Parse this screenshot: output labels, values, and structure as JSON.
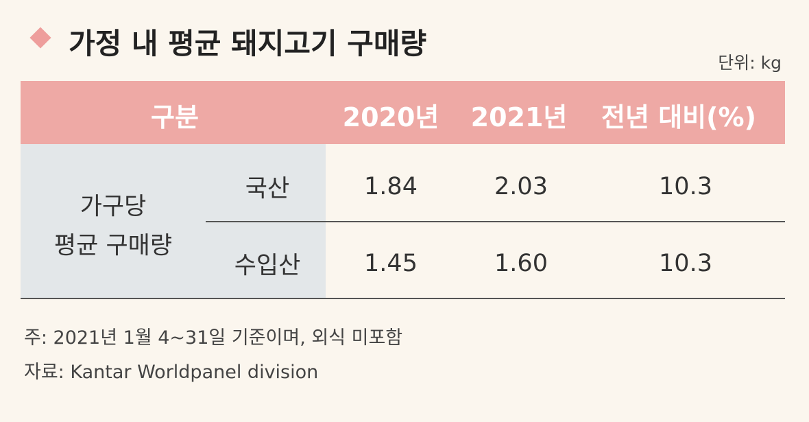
{
  "title": "가정 내 평균 돼지고기 구매량",
  "unit": "단위: kg",
  "table": {
    "header": [
      "구분",
      "2020년",
      "2021년",
      "전년 대비(%)"
    ],
    "group": [
      "가구당",
      "평균 구매량"
    ],
    "rows": [
      [
        "국산",
        "1.84",
        "2.03",
        "10.3"
      ],
      [
        "수입산",
        "1.45",
        "1.60",
        "10.3"
      ]
    ]
  },
  "notes": [
    "주: 2021년 1월 4~31일 기준이며, 외식 미포함",
    "자료: Kantar Worldpanel division"
  ]
}
